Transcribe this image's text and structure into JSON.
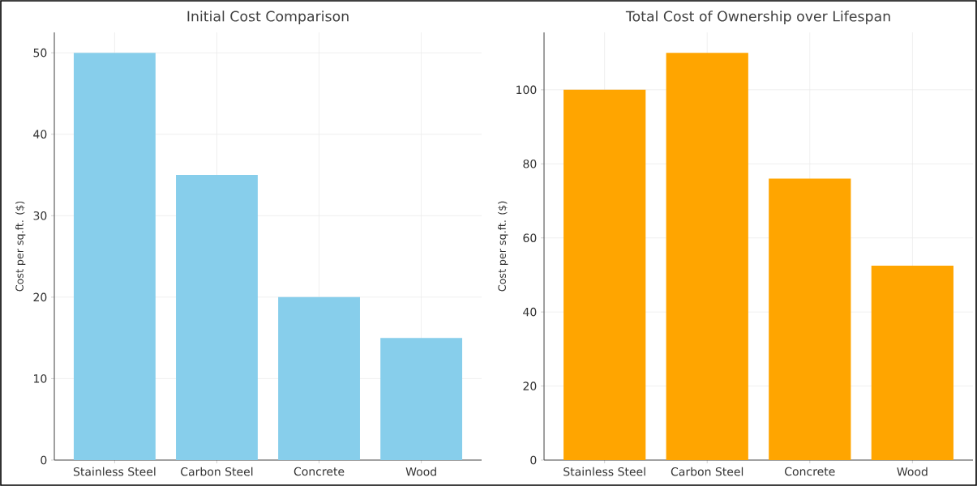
{
  "chart_data": [
    {
      "type": "bar",
      "title": "Initial Cost Comparison",
      "ylabel": "Cost per sq.ft. ($)",
      "categories": [
        "Stainless Steel",
        "Carbon Steel",
        "Concrete",
        "Wood"
      ],
      "values": [
        50,
        35,
        20,
        15
      ],
      "color": "#87ceeb",
      "ylim": [
        0,
        52.5
      ],
      "yticks": [
        0,
        10,
        20,
        30,
        40,
        50
      ],
      "grid": true
    },
    {
      "type": "bar",
      "title": "Total Cost of Ownership over Lifespan",
      "ylabel": "Cost per sq.ft. ($)",
      "categories": [
        "Stainless Steel",
        "Carbon Steel",
        "Concrete",
        "Wood"
      ],
      "values": [
        100,
        110,
        76,
        52.5
      ],
      "color": "#ffa500",
      "ylim": [
        0,
        115.5
      ],
      "yticks": [
        0,
        20,
        40,
        60,
        80,
        100
      ],
      "grid": true
    }
  ]
}
